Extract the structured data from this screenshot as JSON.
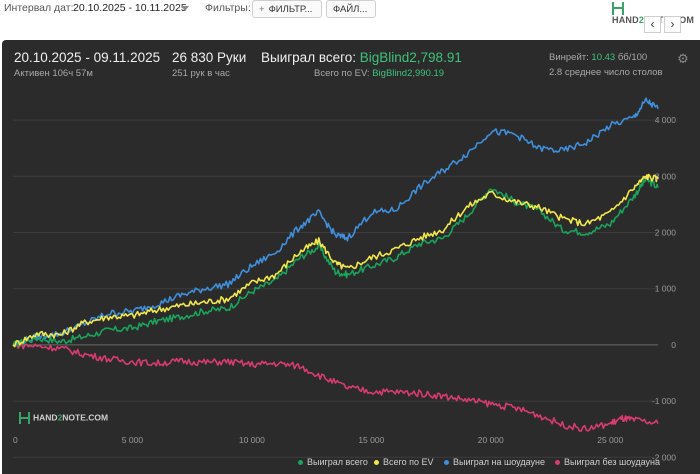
{
  "toolbar": {
    "interval_label": "Интервал дат:",
    "interval_value": "20.10.2025 - 10.11.2025",
    "filters_label": "Фильтры:",
    "filter_button": "ФИЛЬТР...",
    "file_button": "ФАЙЛ...",
    "logo_text_a": "HAND",
    "logo_text_b": "2",
    "logo_text_c": "NOTE.COM",
    "nav_prev": "‹",
    "nav_next": "›"
  },
  "summary": {
    "date_range": "20.10.2025 - 09.11.2025",
    "active": "Активен 106ч 57м",
    "hands": "26 830 Руки",
    "hands_per_hour": "251 рук в час",
    "won_total_label": "Выиграл всего:",
    "won_total_value": "BigBlind2,798.91",
    "ev_total_label": "Всего по EV:",
    "ev_total_value": "BigBlind2,990.19",
    "winrate_label": "Винрейт:",
    "winrate_value": "10.43",
    "winrate_unit": "бб/100",
    "avg_tables": "2.8 среднее число столов"
  },
  "watermark": {
    "a": "HAND",
    "b": "2",
    "c": "NOTE.COM"
  },
  "colors": {
    "won": "#1aa35a",
    "ev": "#f2e84a",
    "showdown": "#3f8fdc",
    "nonshowdown": "#d93b6f",
    "panel": "#2b2b2b"
  },
  "chart_data": {
    "type": "line",
    "x_ticks": [
      "0",
      "5 000",
      "10 000",
      "15 000",
      "20 000",
      "25 000"
    ],
    "y_ticks": [
      "4 000",
      "3 000",
      "2 000",
      "1 000",
      "0",
      "-1 000",
      "-2 000"
    ],
    "y_tick_values": [
      4000,
      3000,
      2000,
      1000,
      0,
      -1000,
      -2000
    ],
    "x_tick_values": [
      0,
      5000,
      10000,
      15000,
      20000,
      25000
    ],
    "xlim": [
      0,
      27000
    ],
    "ylim": [
      -1550,
      4500
    ],
    "grid": true,
    "legend_position": "bottom-right",
    "series": [
      {
        "name": "Выиграл всего",
        "x": [
          0,
          1000,
          2000,
          3000,
          4000,
          5000,
          6000,
          7000,
          8000,
          9000,
          10000,
          11000,
          12000,
          12800,
          13500,
          14000,
          15000,
          16000,
          17000,
          18000,
          19000,
          20000,
          21000,
          22000,
          23000,
          24000,
          25000,
          26000,
          26500,
          27000
        ],
        "values": [
          0,
          120,
          60,
          150,
          260,
          300,
          420,
          500,
          600,
          650,
          950,
          1150,
          1550,
          1750,
          1300,
          1250,
          1400,
          1550,
          1800,
          1900,
          2300,
          2800,
          2550,
          2400,
          2050,
          2000,
          2150,
          2650,
          2950,
          2800
        ]
      },
      {
        "name": "Всего по EV",
        "x": [
          0,
          1000,
          2000,
          3000,
          4000,
          5000,
          6000,
          7000,
          8000,
          9000,
          10000,
          11000,
          12000,
          12800,
          13500,
          14000,
          15000,
          16000,
          17000,
          18000,
          19000,
          20000,
          21000,
          22000,
          23000,
          24000,
          25000,
          26000,
          26500,
          27000
        ],
        "values": [
          0,
          200,
          180,
          400,
          500,
          520,
          620,
          700,
          760,
          820,
          1100,
          1250,
          1650,
          1850,
          1450,
          1350,
          1550,
          1700,
          1900,
          2050,
          2450,
          2700,
          2550,
          2450,
          2250,
          2150,
          2350,
          2800,
          3000,
          2950
        ]
      },
      {
        "name": "Выиграл на шоудауне",
        "x": [
          0,
          1000,
          2000,
          3000,
          4000,
          5000,
          6000,
          7000,
          8000,
          9000,
          10000,
          11000,
          12000,
          12800,
          13500,
          14000,
          15000,
          16000,
          17000,
          18000,
          19000,
          20000,
          21000,
          22000,
          23000,
          24000,
          25000,
          26000,
          26500,
          27000
        ],
        "values": [
          0,
          150,
          200,
          380,
          560,
          600,
          720,
          880,
          1000,
          1080,
          1400,
          1650,
          2100,
          2350,
          1950,
          1900,
          2350,
          2400,
          2800,
          3100,
          3400,
          3800,
          3750,
          3500,
          3450,
          3600,
          3900,
          4050,
          4350,
          4200
        ]
      },
      {
        "name": "Выиграл без шоудауна",
        "x": [
          0,
          1000,
          2000,
          3000,
          4000,
          5000,
          6000,
          7000,
          8000,
          9000,
          10000,
          11000,
          12000,
          13000,
          14000,
          15000,
          16000,
          17000,
          18000,
          19000,
          20000,
          21000,
          22000,
          23000,
          24000,
          25000,
          25500,
          26000,
          27000
        ],
        "values": [
          0,
          -20,
          -60,
          -170,
          -250,
          -300,
          -330,
          -290,
          -310,
          -300,
          -350,
          -330,
          -380,
          -580,
          -760,
          -830,
          -840,
          -860,
          -910,
          -980,
          -1050,
          -1120,
          -1250,
          -1420,
          -1500,
          -1400,
          -1310,
          -1340,
          -1400
        ]
      }
    ]
  }
}
